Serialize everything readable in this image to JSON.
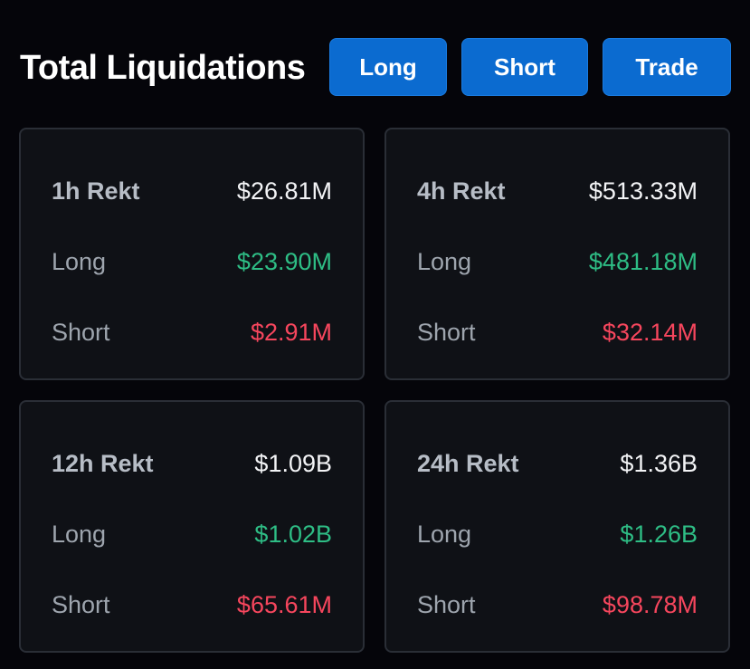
{
  "header": {
    "title": "Total Liquidations",
    "buttons": {
      "long": "Long",
      "short": "Short",
      "trade": "Trade"
    }
  },
  "cards": [
    {
      "period": "1h Rekt",
      "total": "$26.81M",
      "long_label": "Long",
      "long": "$23.90M",
      "short_label": "Short",
      "short": "$2.91M"
    },
    {
      "period": "4h Rekt",
      "total": "$513.33M",
      "long_label": "Long",
      "long": "$481.18M",
      "short_label": "Short",
      "short": "$32.14M"
    },
    {
      "period": "12h Rekt",
      "total": "$1.09B",
      "long_label": "Long",
      "long": "$1.02B",
      "short_label": "Short",
      "short": "$65.61M"
    },
    {
      "period": "24h Rekt",
      "total": "$1.36B",
      "long_label": "Long",
      "long": "$1.26B",
      "short_label": "Short",
      "short": "$98.78M"
    }
  ],
  "colors": {
    "background": "#05050a",
    "card": "#0f1116",
    "button": "#0b6bd0",
    "long": "#2ebd85",
    "short": "#f6465d"
  }
}
